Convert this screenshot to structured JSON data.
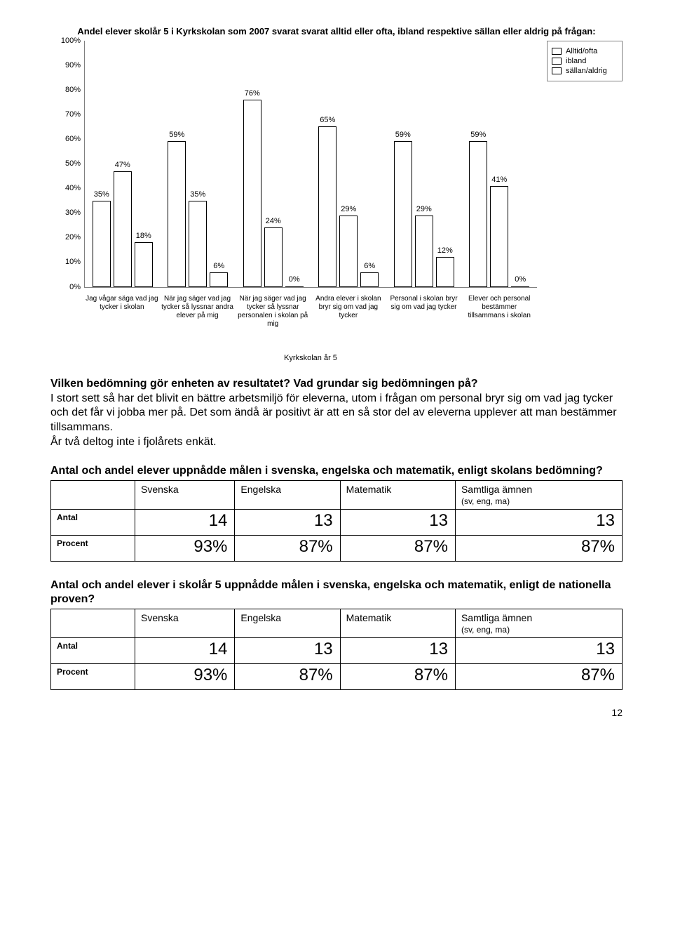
{
  "chart": {
    "type": "bar",
    "title": "Andel elever skolår 5 i Kyrkskolan som 2007 svarat svarat alltid eller ofta, ibland respektive sällan eller aldrig på frågan:",
    "subtitle": "Kyrkskolan år 5",
    "ylim": [
      0,
      100
    ],
    "ytick_step": 10,
    "ytick_suffix": "%",
    "legend": [
      {
        "label": "Alltid/ofta",
        "pattern": "dots",
        "fill": "#ffffff",
        "border": "#000000"
      },
      {
        "label": "ibland",
        "pattern": "hatch",
        "fill": "#ffffe0",
        "border": "#000000"
      },
      {
        "label": "sällan/aldrig",
        "pattern": "solid",
        "fill": "#ffffff",
        "border": "#000000"
      }
    ],
    "categories": [
      "Jag vågar säga vad jag tycker i skolan",
      "När jag säger vad jag tycker så lyssnar andra elever på mig",
      "När jag säger vad jag tycker så lyssnar personalen i skolan på mig",
      "Andra elever i skolan bryr sig om vad jag tycker",
      "Personal i skolan bryr sig om vad jag tycker",
      "Elever och personal bestämmer tillsammans i skolan"
    ],
    "series": [
      {
        "name": "Alltid/ofta",
        "values": [
          35,
          59,
          76,
          65,
          59,
          59
        ]
      },
      {
        "name": "ibland",
        "values": [
          47,
          35,
          24,
          29,
          29,
          41
        ]
      },
      {
        "name": "sällan/aldrig",
        "values": [
          18,
          6,
          0,
          6,
          12,
          0
        ]
      }
    ],
    "bar_label_suffix": "%",
    "background_color": "#ffffff",
    "axis_color": "#808080",
    "fontsize": 11
  },
  "assessment": {
    "question": "Vilken bedömning gör enheten av resultatet? Vad grundar sig bedömningen på?",
    "answer": "I stort sett så har det blivit en bättre arbetsmiljö för eleverna, utom i frågan om personal bryr sig om vad jag tycker och det får vi jobba mer på. Det som ändå är positivt är att en så stor del av eleverna upplever att man bestämmer tillsammans.\nÅr två deltog inte i fjolårets enkät."
  },
  "table1": {
    "heading": "Antal och andel elever uppnådde målen i svenska, engelska och matematik, enligt skolans bedömning?",
    "columns": [
      "Svenska",
      "Engelska",
      "Matematik",
      "Samtliga ämnen"
    ],
    "subhead_last": "(sv, eng, ma)",
    "rows": [
      {
        "label": "Antal",
        "values": [
          "14",
          "13",
          "13",
          "13"
        ]
      },
      {
        "label": "Procent",
        "values": [
          "93%",
          "87%",
          "87%",
          "87%"
        ]
      }
    ]
  },
  "table2": {
    "heading": "Antal och andel elever i skolår 5 uppnådde målen i svenska, engelska och matematik, enligt de nationella proven?",
    "columns": [
      "Svenska",
      "Engelska",
      "Matematik",
      "Samtliga ämnen"
    ],
    "subhead_last": "(sv, eng, ma)",
    "rows": [
      {
        "label": "Antal",
        "values": [
          "14",
          "13",
          "13",
          "13"
        ]
      },
      {
        "label": "Procent",
        "values": [
          "93%",
          "87%",
          "87%",
          "87%"
        ]
      }
    ]
  },
  "page_number": "12"
}
